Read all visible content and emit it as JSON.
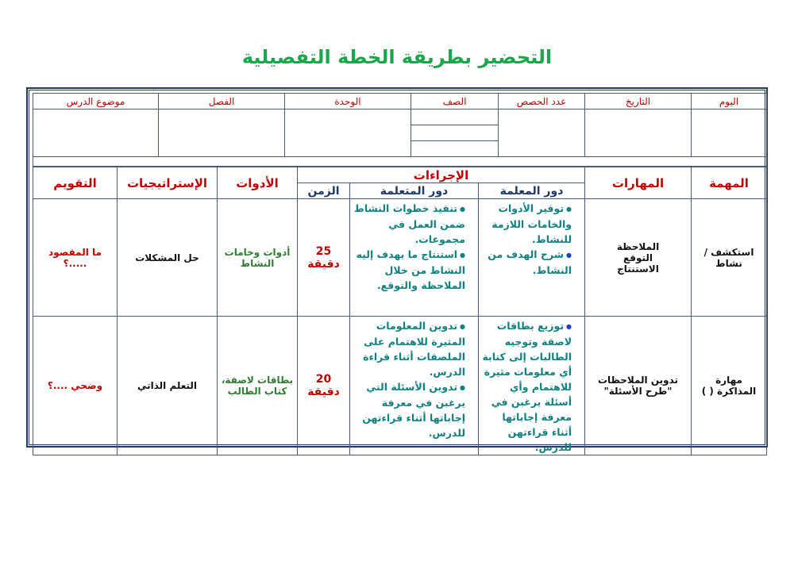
{
  "title": "التحضير بطريقة الخطة التفصيلية",
  "info_headers": [
    "اليوم",
    "التاريخ",
    "عدد الحصص",
    "الصف",
    "الوحدة",
    "الفصل",
    "موضوع الدرس"
  ],
  "headers": {
    "task": "المهمة",
    "skills": "المهارات",
    "procedures": "الإجراءات",
    "teacher_role": "دور المعلمة",
    "learner_role": "دور المتعلمة",
    "time": "الزمن",
    "tools": "الأدوات",
    "strategies": "الإستراتيجيات",
    "evaluation": "التقويم"
  },
  "rows": [
    {
      "task": "استكشف / نشاط",
      "skills": [
        "الملاحظة",
        "التوقع",
        "الاستنتاج"
      ],
      "teacher": [
        "توفير الأدوات والخامات اللازمة للنشاط.",
        "شرح الهدف من النشاط."
      ],
      "learner": [
        "تنفيذ خطوات النشاط ضمن العمل في مجموعات.",
        "استنتاج ما يهدف إليه النشاط من خلال الملاحظة والتوقع."
      ],
      "time": "25 دقيقة",
      "tools": "أدوات وخامات النشاط",
      "strategy": "حل المشكلات",
      "evaluation": "ما المقصود .....؟"
    },
    {
      "task": "مهارة المذاكرة (  )",
      "skills": [
        "تدوين الملاحظات",
        "\"طرح الأسئلة\""
      ],
      "teacher": [
        "توزيع بطاقات لاصقة وتوجيه الطالبات إلى كتابة أي معلومات مثيرة للاهتمام وأي أسئلة يرغبن في معرفة إجاباتها أثناء قراءتهن للدرس."
      ],
      "learner": [
        "تدوين المعلومات المثيرة للاهتمام على الملصقات أثناء قراءة الدرس.",
        "تدوين الأسئلة التي يرغبن في معرفة إجاباتها أثناء قراءتهن للدرس."
      ],
      "time": "20 دقيقة",
      "tools": "بطاقات لاصقة، كتاب الطالب",
      "strategy": "التعلم الذاتي",
      "evaluation": "وضحي ....؟"
    }
  ]
}
